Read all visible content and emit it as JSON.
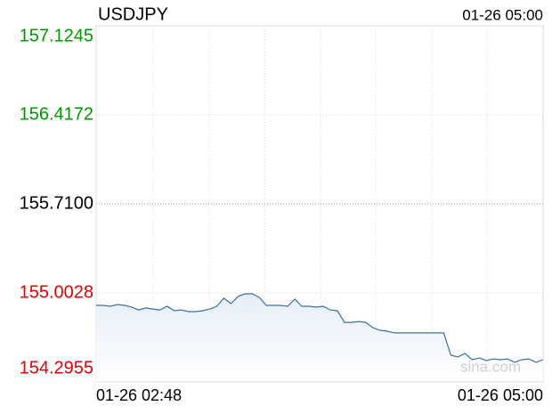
{
  "chart_data": {
    "type": "line",
    "title": "USDJPY",
    "timestamp": "01-26 05:00",
    "x_labels": [
      "01-26 02:48",
      "01-26 05:00"
    ],
    "watermark": "sina.com",
    "color": "#3a6ea8",
    "up_color": "#009900",
    "down_color": "#e60000",
    "neutral_color": "#000000",
    "ylim": [
      154.2955,
      157.1245
    ],
    "yticks": [
      157.1245,
      156.4172,
      {
        "value": 155.71,
        "label": "155.7100"
      },
      155.0028,
      154.2955
    ],
    "values": [
      154.904,
      154.904,
      154.897,
      154.911,
      154.904,
      154.89,
      154.868,
      154.883,
      154.875,
      154.868,
      154.897,
      154.861,
      154.868,
      154.854,
      154.854,
      154.861,
      154.875,
      154.897,
      154.96,
      154.918,
      154.975,
      154.996,
      154.996,
      154.967,
      154.904,
      154.904,
      154.904,
      154.897,
      154.953,
      154.897,
      154.897,
      154.89,
      154.897,
      154.868,
      154.861,
      154.769,
      154.769,
      154.776,
      154.769,
      154.727,
      154.706,
      154.699,
      154.685,
      154.685,
      154.685,
      154.685,
      154.685,
      154.685,
      154.685,
      154.685,
      154.508,
      154.494,
      154.522,
      154.472,
      154.486,
      154.465,
      154.479,
      154.472,
      154.479,
      154.451,
      154.472,
      154.479,
      154.451,
      154.472
    ]
  }
}
